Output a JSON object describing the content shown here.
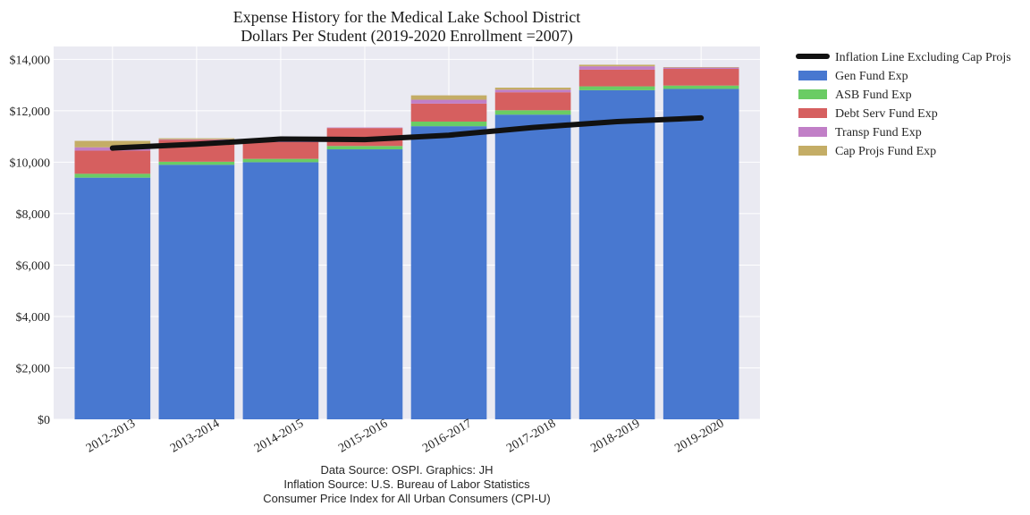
{
  "chart_data": {
    "type": "bar",
    "stacked": true,
    "title": "Expense History for the Medical Lake School District",
    "subtitle": "Dollars Per Student (2019-2020 Enrollment =2007)",
    "xlabel": "",
    "ylabel": "",
    "categories": [
      "2012-2013",
      "2013-2014",
      "2014-2015",
      "2015-2016",
      "2016-2017",
      "2017-2018",
      "2018-2019",
      "2019-2020"
    ],
    "ylim": [
      0,
      14500
    ],
    "yticks": [
      0,
      2000,
      4000,
      6000,
      8000,
      10000,
      12000,
      14000
    ],
    "ytick_labels": [
      "$0",
      "$2,000",
      "$4,000",
      "$6,000",
      "$8,000",
      "$10,000",
      "$12,000",
      "$14,000"
    ],
    "grid": true,
    "legend_position": "outside-right",
    "series": [
      {
        "name": "Gen Fund Exp",
        "color": "#4878d0",
        "values": [
          9400,
          9900,
          10000,
          10500,
          11400,
          11850,
          12800,
          12850
        ]
      },
      {
        "name": "ASB Fund Exp",
        "color": "#6acc64",
        "values": [
          150,
          120,
          130,
          130,
          180,
          170,
          150,
          130
        ]
      },
      {
        "name": "Debt Serv Fund Exp",
        "color": "#d65f5f",
        "values": [
          900,
          850,
          650,
          700,
          700,
          700,
          650,
          650
        ]
      },
      {
        "name": "Transp Fund Exp",
        "color": "#c17fc7",
        "values": [
          130,
          20,
          20,
          20,
          150,
          100,
          130,
          50
        ]
      },
      {
        "name": "Cap Projs Fund Exp",
        "color": "#c4ad66",
        "values": [
          250,
          40,
          0,
          0,
          170,
          80,
          60,
          20
        ]
      }
    ],
    "line_series": {
      "name": "Inflation Line Excluding Cap Projs",
      "color": "#111111",
      "values": [
        10550,
        10700,
        10900,
        10880,
        11050,
        11350,
        11580,
        11720
      ]
    },
    "footnotes": [
      "Data Source: OSPI. Graphics: JH",
      "Inflation Source: U.S. Bureau of Labor Statistics",
      "Consumer Price Index for All Urban Consumers (CPI-U)"
    ]
  }
}
